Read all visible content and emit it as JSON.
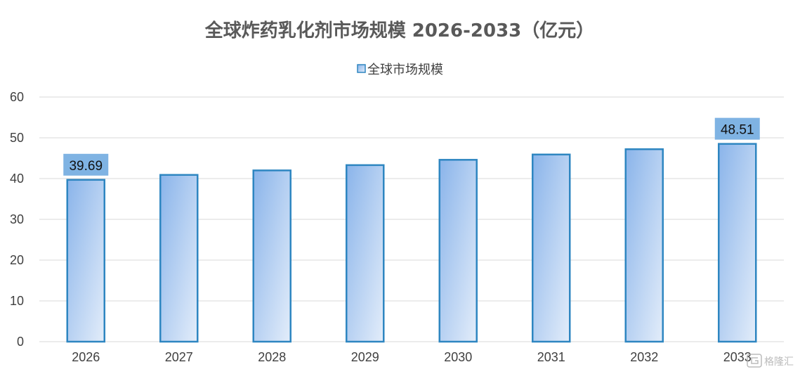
{
  "chart_data": {
    "type": "bar",
    "title": "全球炸药乳化剂市场规模 2026-2033（亿元）",
    "xlabel": "",
    "ylabel": "",
    "categories": [
      "2026",
      "2027",
      "2028",
      "2029",
      "2030",
      "2031",
      "2032",
      "2033"
    ],
    "series": [
      {
        "name": "全球市场规模",
        "values": [
          39.69,
          40.9,
          42.0,
          43.3,
          44.6,
          45.9,
          47.2,
          48.51
        ],
        "data_labels": [
          "39.69",
          null,
          null,
          null,
          null,
          null,
          null,
          "48.51"
        ]
      }
    ],
    "ylim": [
      0,
      60
    ],
    "yticks": [
      "0",
      "10",
      "20",
      "30",
      "40",
      "50",
      "60"
    ],
    "grid": true,
    "legend_position": "top",
    "colors": {
      "bar_fill_start": "#8ab4ea",
      "bar_fill_end": "#e3edfa",
      "bar_border": "#2e86c1",
      "label_background": "#7fb3e3",
      "gridline": "#d9d9d9",
      "title": "#595959"
    }
  },
  "watermark": {
    "text": "格隆汇"
  }
}
